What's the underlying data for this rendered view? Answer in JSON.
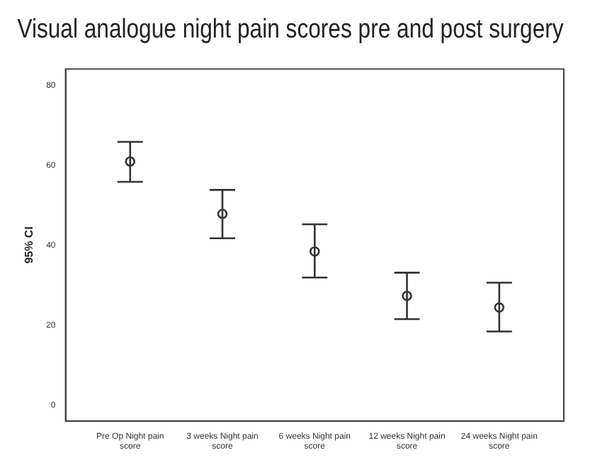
{
  "chart_data": {
    "type": "scatter",
    "title": "Visual analogue night pain scores pre and post surgery",
    "ylabel": "95% CI",
    "categories": [
      "Pre Op Night pain score",
      "3 weeks Night pain score",
      "6 weeks Night pain score",
      "12 weeks Night pain score",
      "24 weeks Night pain score"
    ],
    "values": [
      60.9,
      47.8,
      38.4,
      27.3,
      24.4
    ],
    "errors": [
      [
        55.8,
        65.8
      ],
      [
        41.7,
        53.8
      ],
      [
        31.9,
        45.2
      ],
      [
        21.5,
        33.1
      ],
      [
        18.4,
        30.6
      ]
    ],
    "color": "#333333",
    "marker": "circle",
    "grid": false,
    "legend": false,
    "ylim": [
      -4,
      84
    ],
    "yticks": [
      0,
      20,
      40,
      60,
      80
    ]
  }
}
